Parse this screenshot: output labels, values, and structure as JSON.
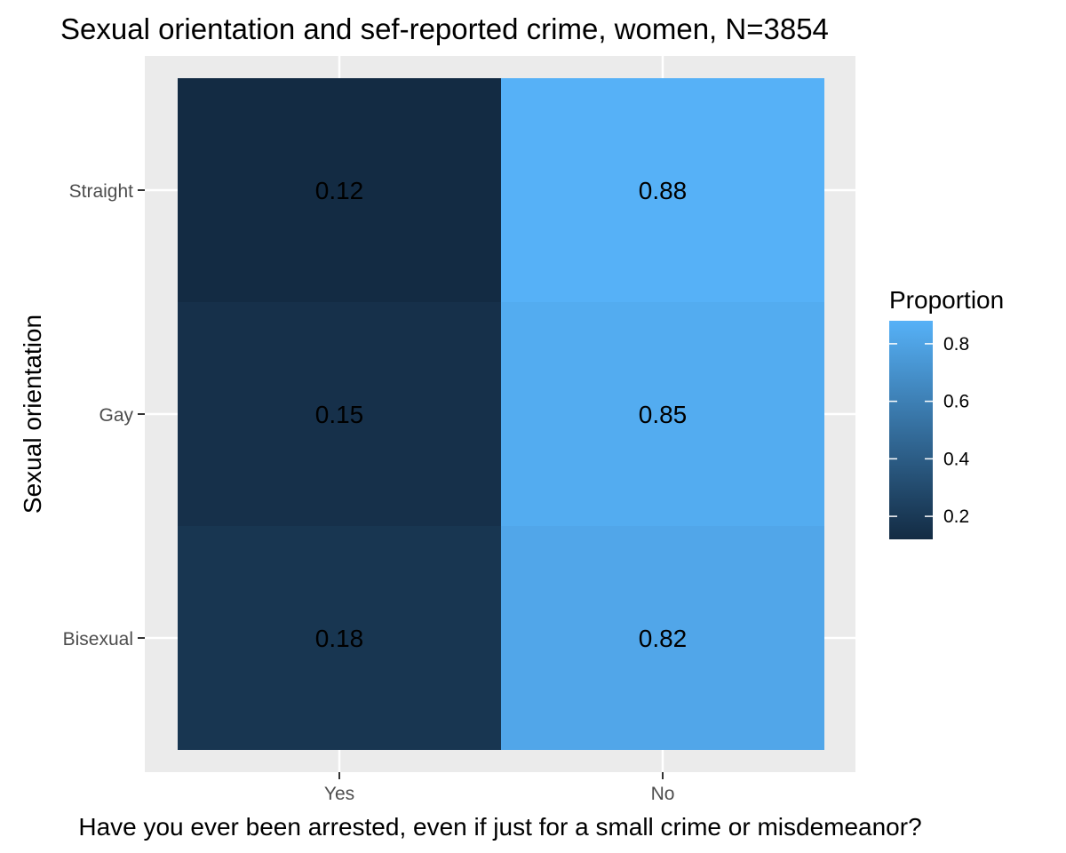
{
  "chart_data": {
    "type": "heatmap",
    "title": "Sexual orientation and sef-reported crime, women, N=3854",
    "xlabel": "Have you ever been arrested, even if just for a small crime or misdemeanor?",
    "ylabel": "Sexual orientation",
    "x_categories": [
      "Yes",
      "No"
    ],
    "y_categories": [
      "Straight",
      "Gay",
      "Bisexual"
    ],
    "values": [
      [
        0.12,
        0.88
      ],
      [
        0.15,
        0.85
      ],
      [
        0.18,
        0.82
      ]
    ],
    "value_labels": [
      [
        "0.12",
        "0.88"
      ],
      [
        "0.15",
        "0.85"
      ],
      [
        "0.18",
        "0.82"
      ]
    ],
    "legend": {
      "title": "Proportion",
      "range": [
        0.12,
        0.88
      ],
      "ticks": [
        0.2,
        0.4,
        0.6,
        0.8
      ],
      "tick_labels": [
        "0.2",
        "0.4",
        "0.6",
        "0.8"
      ],
      "placement": "right"
    },
    "colors": {
      "low": "#132B43",
      "high": "#56B1F7",
      "panel_background": "#EBEBEB",
      "grid": "#FFFFFF",
      "tick_label": "#4D4D4D"
    }
  }
}
